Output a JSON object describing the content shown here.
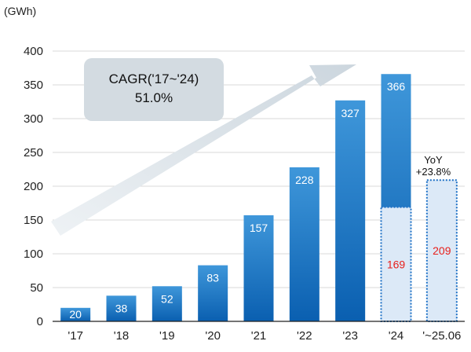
{
  "chart_data": {
    "type": "bar",
    "unit_label": "(GWh)",
    "categories": [
      "'17",
      "'18",
      "'19",
      "'20",
      "'21",
      "'22",
      "'23",
      "'24",
      "'~25.06"
    ],
    "series": [
      {
        "values": [
          20,
          38,
          52,
          83,
          157,
          228,
          327,
          366,
          null
        ]
      },
      {
        "values": [
          null,
          null,
          null,
          null,
          null,
          null,
          null,
          169,
          209
        ]
      }
    ],
    "ylim": [
      0,
      400
    ],
    "yticks": [
      0,
      50,
      100,
      150,
      200,
      250,
      300,
      350,
      400
    ],
    "grid": true,
    "annotations": {
      "cagr_title": "CAGR('17~'24)",
      "cagr_value": "51.0%",
      "yoy_label": "YoY",
      "yoy_value": "+23.8%"
    },
    "colors": {
      "bar_top": "#3f97da",
      "bar_bottom": "#0a5fb0",
      "partial_fill": "#dce9f7",
      "partial_border": "#1b6fc5",
      "partial_text": "#e8201c",
      "arrow": "#d5dde3",
      "cagr_box": "#d3dbe1",
      "grid": "#d9d9d9",
      "axis": "#222222"
    }
  }
}
